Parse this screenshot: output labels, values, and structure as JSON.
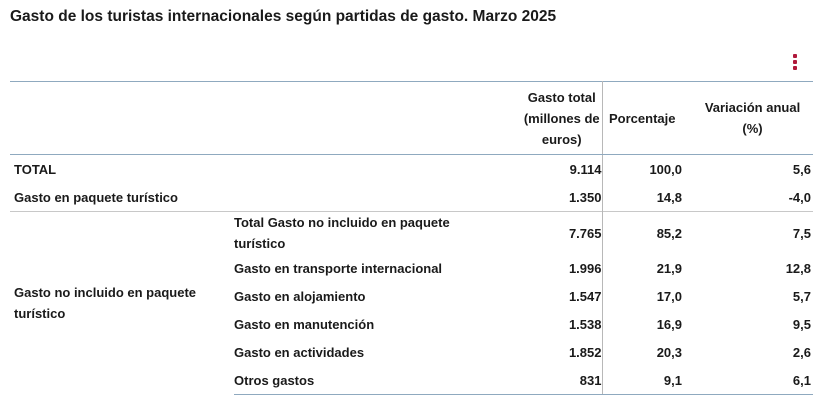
{
  "title": "Gasto de los turistas internacionales según partidas de gasto. Marzo 2025",
  "menu_icon": "kebab-menu-icon",
  "accent_color": "#b0193b",
  "table": {
    "headers": {
      "gasto_total": "Gasto total (millones de euros)",
      "porcentaje": "Porcentaje",
      "variacion": "Variación anual (%)"
    },
    "total": {
      "label": "TOTAL",
      "gasto": "9.114",
      "porcentaje": "100,0",
      "variacion": "5,6"
    },
    "paquete": {
      "label": "Gasto en paquete turístico",
      "gasto": "1.350",
      "porcentaje": "14,8",
      "variacion": "-4,0"
    },
    "no_incluido": {
      "label": "Gasto no incluido en paquete turístico",
      "rows": [
        {
          "label": "Total Gasto no incluido en paquete turístico",
          "gasto": "7.765",
          "porcentaje": "85,2",
          "variacion": "7,5"
        },
        {
          "label": "Gasto en transporte internacional",
          "gasto": "1.996",
          "porcentaje": "21,9",
          "variacion": "12,8"
        },
        {
          "label": "Gasto en alojamiento",
          "gasto": "1.547",
          "porcentaje": "17,0",
          "variacion": "5,7"
        },
        {
          "label": "Gasto en manutención",
          "gasto": "1.538",
          "porcentaje": "16,9",
          "variacion": "9,5"
        },
        {
          "label": "Gasto en actividades",
          "gasto": "1.852",
          "porcentaje": "20,3",
          "variacion": "2,6"
        },
        {
          "label": "Otros gastos",
          "gasto": "831",
          "porcentaje": "9,1",
          "variacion": "6,1"
        }
      ]
    }
  }
}
